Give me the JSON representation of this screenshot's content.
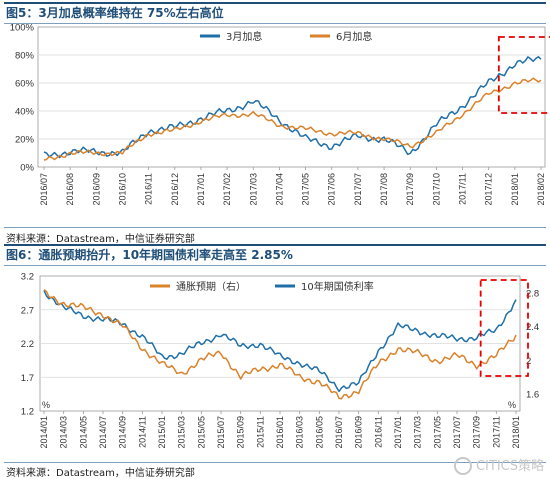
{
  "charts": [
    {
      "title_label": "图5：",
      "title_text": "3月加息概率维持在 75%左右高位",
      "source": "资料来源：Datastream，中信证券研究部"
    },
    {
      "title_label": "图6：",
      "title_text": "通胀预期抬升，10年期国债利率走高至 2.85%",
      "source": "资料来源：Datastream，中信证券研究部"
    }
  ],
  "watermark": "CITICS策略",
  "colors": {
    "blue": "#1f6fa8",
    "orange": "#d9822b",
    "highlight": "#e60000",
    "title": "#1f4e79"
  },
  "chart_data": [
    {
      "type": "line",
      "title": "图5：3月加息概率维持在 75%左右高位",
      "x": [
        "2016/07",
        "2016/08",
        "2016/09",
        "2016/10",
        "2016/11",
        "2016/12",
        "2017/01",
        "2017/02",
        "2017/03",
        "2017/04",
        "2017/05",
        "2017/06",
        "2017/07",
        "2017/08",
        "2017/09",
        "2017/10",
        "2017/11",
        "2017/12",
        "2018/01",
        "2018/02"
      ],
      "y_ticks": [
        "0%",
        "20%",
        "40%",
        "60%",
        "80%",
        "100%"
      ],
      "ylim": [
        0,
        100
      ],
      "legend": "top",
      "series": [
        {
          "name": "3月加息",
          "color": "#1f6fa8",
          "values": [
            8,
            11,
            11,
            10,
            26,
            28,
            35,
            40,
            47,
            34,
            20,
            15,
            22,
            20,
            10,
            30,
            44,
            60,
            74,
            77
          ]
        },
        {
          "name": "6月加息",
          "color": "#d9822b",
          "values": [
            5,
            10,
            10,
            10,
            24,
            26,
            33,
            37,
            38,
            30,
            27,
            24,
            24,
            20,
            15,
            24,
            38,
            52,
            60,
            62
          ]
        }
      ],
      "annotation": "red dashed box highlighting 2018/01–2018/02"
    },
    {
      "type": "line",
      "title": "图6：通胀预期抬升，10年期国债利率走高至 2.85%",
      "x": [
        "2014/01",
        "2014/03",
        "2014/05",
        "2014/07",
        "2014/09",
        "2014/11",
        "2015/01",
        "2015/03",
        "2015/05",
        "2015/07",
        "2015/09",
        "2015/11",
        "2016/01",
        "2016/03",
        "2016/05",
        "2016/07",
        "2016/09",
        "2016/11",
        "2017/01",
        "2017/03",
        "2017/05",
        "2017/07",
        "2017/09",
        "2017/11",
        "2018/01"
      ],
      "y_left_ticks": [
        "1.2",
        "1.7",
        "2.2",
        "2.7",
        "3.2"
      ],
      "y_right_ticks": [
        "1.6",
        "2",
        "2.4",
        "2.8"
      ],
      "y_left_label": "%",
      "y_right_label": "%",
      "ylim_left": [
        1.2,
        3.2
      ],
      "ylim_right": [
        1.4,
        3.0
      ],
      "legend": "top",
      "series": [
        {
          "name": "10年期国债利率",
          "axis": "left",
          "color": "#1f6fa8",
          "values": [
            2.98,
            2.72,
            2.62,
            2.55,
            2.5,
            2.3,
            2.0,
            2.05,
            2.2,
            2.35,
            2.15,
            2.2,
            2.0,
            1.92,
            1.78,
            1.55,
            1.6,
            2.1,
            2.45,
            2.4,
            2.3,
            2.28,
            2.28,
            2.4,
            2.85
          ]
        },
        {
          "name": "通胀预期（右）",
          "axis": "right",
          "color": "#d9822b",
          "values": [
            2.8,
            2.68,
            2.62,
            2.55,
            2.4,
            2.15,
            1.95,
            1.85,
            2.0,
            2.1,
            1.8,
            1.9,
            1.95,
            1.8,
            1.75,
            1.55,
            1.65,
            1.95,
            2.15,
            2.08,
            2.0,
            2.05,
            1.95,
            2.05,
            2.3
          ]
        }
      ],
      "annotation": "red dashed box highlighting 2017/11–2018/01"
    }
  ]
}
